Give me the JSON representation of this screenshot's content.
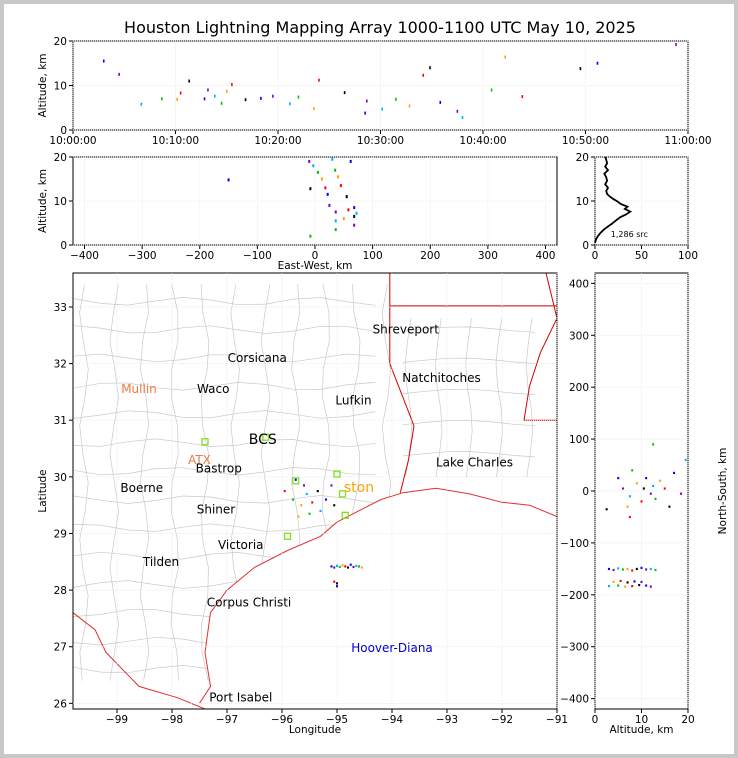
{
  "title": "Houston Lightning Mapping Array 1000-1100 UTC May 10, 2025",
  "colors": {
    "background": "#c8c8c8",
    "county_lines": "#c9c9c9",
    "state_lines": "#d40000",
    "coast": "#e03030"
  },
  "chart_data": [
    {
      "panel": "time-height",
      "type": "scatter",
      "ylabel": "Altitude, km",
      "xlabel": "",
      "xlim": [
        "10:00:00",
        "11:00:00"
      ],
      "ylim": [
        0,
        20
      ],
      "xticks": [
        "10:00:00",
        "10:10:00",
        "10:20:00",
        "10:30:00",
        "10:40:00",
        "10:50:00",
        "11:00:00"
      ],
      "yticks": [
        "0",
        "10",
        "20"
      ],
      "points": [
        [
          "10:03:00",
          15.5
        ],
        [
          "10:04:30",
          12.5
        ],
        [
          "10:06:40",
          5.8
        ],
        [
          "10:08:40",
          7.0
        ],
        [
          "10:10:10",
          6.9
        ],
        [
          "10:10:30",
          8.3
        ],
        [
          "10:11:20",
          11.0
        ],
        [
          "10:12:50",
          7.0
        ],
        [
          "10:13:10",
          9.0
        ],
        [
          "10:13:50",
          7.6
        ],
        [
          "10:14:30",
          6.0
        ],
        [
          "10:15:00",
          8.7
        ],
        [
          "10:15:30",
          10.2
        ],
        [
          "10:16:50",
          6.8
        ],
        [
          "10:18:20",
          7.1
        ],
        [
          "10:19:30",
          7.6
        ],
        [
          "10:21:10",
          5.9
        ],
        [
          "10:22:00",
          7.4
        ],
        [
          "10:23:30",
          4.8
        ],
        [
          "10:24:00",
          11.2
        ],
        [
          "10:26:30",
          8.4
        ],
        [
          "10:28:30",
          3.8
        ],
        [
          "10:28:40",
          6.5
        ],
        [
          "10:30:10",
          4.7
        ],
        [
          "10:31:30",
          6.9
        ],
        [
          "10:32:50",
          5.4
        ],
        [
          "10:34:10",
          12.3
        ],
        [
          "10:34:50",
          14.0
        ],
        [
          "10:35:50",
          6.2
        ],
        [
          "10:37:30",
          4.2
        ],
        [
          "10:38:00",
          2.8
        ],
        [
          "10:40:50",
          9.0
        ],
        [
          "10:42:10",
          16.4
        ],
        [
          "10:43:50",
          7.5
        ],
        [
          "10:49:30",
          13.8
        ],
        [
          "10:51:10",
          15.0
        ],
        [
          "10:58:50",
          19.2
        ]
      ]
    },
    {
      "panel": "east-west-height",
      "type": "scatter",
      "xlabel": "East-West, km",
      "ylabel": "Altitude, km",
      "xlim": [
        -420,
        420
      ],
      "ylim": [
        0,
        20
      ],
      "xticks": [
        "−400",
        "−300",
        "−200",
        "−100",
        "0",
        "100",
        "200",
        "300",
        "400"
      ],
      "yticks": [
        "0",
        "10",
        "20"
      ],
      "points": [
        [
          -150,
          14.8
        ],
        [
          -10,
          19.0
        ],
        [
          -3,
          18.0
        ],
        [
          5,
          16.5
        ],
        [
          12,
          15.0
        ],
        [
          18,
          13.0
        ],
        [
          -8,
          12.8
        ],
        [
          22,
          11.5
        ],
        [
          25,
          9.0
        ],
        [
          30,
          19.5
        ],
        [
          35,
          17.0
        ],
        [
          40,
          15.5
        ],
        [
          45,
          13.5
        ],
        [
          55,
          11.0
        ],
        [
          62,
          19.0
        ],
        [
          36,
          7.5
        ],
        [
          36,
          5.5
        ],
        [
          36,
          3.5
        ],
        [
          50,
          6.0
        ],
        [
          58,
          8.0
        ],
        [
          68,
          6.5
        ],
        [
          68,
          8.5
        ],
        [
          68,
          4.5
        ],
        [
          72,
          7.2
        ],
        [
          -8,
          2.0
        ]
      ]
    },
    {
      "panel": "altitude-histogram",
      "type": "line",
      "xlim": [
        0,
        100
      ],
      "ylim": [
        0,
        20
      ],
      "xticks": [
        "0",
        "50",
        "100"
      ],
      "yticks": [
        "0",
        "10",
        "20"
      ],
      "annotation": "1,286 src",
      "series": [
        {
          "x": [
            0,
            1,
            3,
            6,
            10,
            14,
            18,
            22,
            27,
            33,
            38,
            32,
            35,
            28,
            24,
            20,
            16,
            13,
            12,
            14,
            11,
            13,
            12,
            10,
            14,
            11,
            13,
            12,
            11
          ],
          "y": [
            0.5,
            1.2,
            2.0,
            2.8,
            3.6,
            4.2,
            4.8,
            5.5,
            6.3,
            6.9,
            7.6,
            8.2,
            8.7,
            9.3,
            9.9,
            10.4,
            11.0,
            11.6,
            12.3,
            13.0,
            13.8,
            14.6,
            15.4,
            16.2,
            17.0,
            17.8,
            18.6,
            19.4,
            20.0
          ]
        }
      ]
    },
    {
      "panel": "plan-view",
      "type": "scatter",
      "xlabel": "Longitude",
      "ylabel": "Latitude",
      "xlim": [
        -99.8,
        -91.0
      ],
      "ylim": [
        25.9,
        33.6
      ],
      "xticks": [
        "−99",
        "−98",
        "−97",
        "−96",
        "−95",
        "−94",
        "−93",
        "−92",
        "−91"
      ],
      "yticks": [
        "26",
        "27",
        "28",
        "29",
        "30",
        "31",
        "32",
        "33"
      ],
      "cities": [
        {
          "name": "Shreveport",
          "lon": -93.75,
          "lat": 32.6,
          "color": "#000000"
        },
        {
          "name": "Corsicana",
          "lon": -96.45,
          "lat": 32.1,
          "color": "#000000"
        },
        {
          "name": "Natchitoches",
          "lon": -93.1,
          "lat": 31.75,
          "color": "#000000"
        },
        {
          "name": "Mullin",
          "lon": -98.6,
          "lat": 31.55,
          "color": "#f07840"
        },
        {
          "name": "Waco",
          "lon": -97.25,
          "lat": 31.55,
          "color": "#000000"
        },
        {
          "name": "Lufkin",
          "lon": -94.7,
          "lat": 31.35,
          "color": "#000000"
        },
        {
          "name": "BCS",
          "lon": -96.35,
          "lat": 30.65,
          "color": "#000000"
        },
        {
          "name": "ATX",
          "lon": -97.5,
          "lat": 30.3,
          "color": "#f07840"
        },
        {
          "name": "Bastrop",
          "lon": -97.15,
          "lat": 30.15,
          "color": "#000000"
        },
        {
          "name": "Lake Charles",
          "lon": -92.5,
          "lat": 30.25,
          "color": "#000000"
        },
        {
          "name": "Boerne",
          "lon": -98.55,
          "lat": 29.8,
          "color": "#000000"
        },
        {
          "name": "ston",
          "lon": -94.6,
          "lat": 29.8,
          "color": "#ffa000"
        },
        {
          "name": "Shiner",
          "lon": -97.2,
          "lat": 29.42,
          "color": "#000000"
        },
        {
          "name": "Victoria",
          "lon": -96.75,
          "lat": 28.8,
          "color": "#000000"
        },
        {
          "name": "Tilden",
          "lon": -98.2,
          "lat": 28.5,
          "color": "#000000"
        },
        {
          "name": "Corpus Christi",
          "lon": -96.6,
          "lat": 27.78,
          "color": "#000000"
        },
        {
          "name": "Hoover-Diana",
          "lon": -94.0,
          "lat": 26.98,
          "color": "#0000d0"
        },
        {
          "name": "Port Isabel",
          "lon": -96.75,
          "lat": 26.1,
          "color": "#000000"
        }
      ],
      "stations": [
        {
          "lon": -97.4,
          "lat": 30.62
        },
        {
          "lon": -96.3,
          "lat": 30.7
        },
        {
          "lon": -95.75,
          "lat": 29.93
        },
        {
          "lon": -95.0,
          "lat": 30.05
        },
        {
          "lon": -94.85,
          "lat": 29.32
        },
        {
          "lon": -95.9,
          "lat": 28.95
        },
        {
          "lon": -94.9,
          "lat": 29.7
        }
      ],
      "points": [
        [
          -95.75,
          29.95
        ],
        [
          -95.6,
          29.85
        ],
        [
          -95.55,
          29.7
        ],
        [
          -95.8,
          29.6
        ],
        [
          -95.65,
          29.5
        ],
        [
          -95.45,
          29.55
        ],
        [
          -95.35,
          29.75
        ],
        [
          -95.2,
          29.6
        ],
        [
          -95.1,
          29.85
        ],
        [
          -95.3,
          29.4
        ],
        [
          -95.5,
          29.35
        ],
        [
          -95.7,
          29.3
        ],
        [
          -95.95,
          29.75
        ],
        [
          -95.05,
          29.5
        ],
        [
          -95.1,
          28.42
        ],
        [
          -95.05,
          28.4
        ],
        [
          -95.0,
          28.43
        ],
        [
          -94.95,
          28.41
        ],
        [
          -94.9,
          28.44
        ],
        [
          -94.85,
          28.42
        ],
        [
          -94.8,
          28.4
        ],
        [
          -94.75,
          28.45
        ],
        [
          -94.7,
          28.41
        ],
        [
          -94.65,
          28.43
        ],
        [
          -94.6,
          28.42
        ],
        [
          -94.55,
          28.4
        ],
        [
          -95.05,
          28.15
        ],
        [
          -95.0,
          28.12
        ],
        [
          -95.0,
          28.07
        ]
      ]
    },
    {
      "panel": "north-south-height",
      "type": "scatter",
      "xlabel": "Altitude, km",
      "ylabel": "North-South, km",
      "xlim": [
        0,
        20
      ],
      "ylim": [
        -420,
        420
      ],
      "xticks": [
        "0",
        "10",
        "20"
      ],
      "yticks": [
        "−400",
        "−300",
        "−200",
        "−100",
        "0",
        "100",
        "200",
        "300",
        "400"
      ],
      "points": [
        [
          5.0,
          25
        ],
        [
          6.0,
          5
        ],
        [
          7.5,
          -10
        ],
        [
          8.0,
          40
        ],
        [
          9.0,
          15
        ],
        [
          10.0,
          -20
        ],
        [
          10.5,
          5
        ],
        [
          11.0,
          25
        ],
        [
          12.0,
          -5
        ],
        [
          12.5,
          10
        ],
        [
          13.0,
          -15
        ],
        [
          14.0,
          20
        ],
        [
          15.0,
          5
        ],
        [
          16.0,
          -30
        ],
        [
          17.0,
          35
        ],
        [
          18.5,
          -5
        ],
        [
          19.5,
          60
        ],
        [
          12.5,
          90
        ],
        [
          7.0,
          -30
        ],
        [
          7.5,
          -50
        ],
        [
          2.5,
          -35
        ],
        [
          3.0,
          -150
        ],
        [
          4.0,
          -152
        ],
        [
          5.0,
          -149
        ],
        [
          6.0,
          -151
        ],
        [
          7.0,
          -150
        ],
        [
          8.0,
          -153
        ],
        [
          9.0,
          -150
        ],
        [
          10.0,
          -148
        ],
        [
          11.0,
          -151
        ],
        [
          12.0,
          -150
        ],
        [
          13.0,
          -152
        ],
        [
          4.0,
          -175
        ],
        [
          5.5,
          -173
        ],
        [
          7.0,
          -176
        ],
        [
          8.5,
          -174
        ],
        [
          10.0,
          -175
        ],
        [
          3.0,
          -183
        ],
        [
          5.0,
          -182
        ],
        [
          6.5,
          -184
        ],
        [
          8.0,
          -183
        ],
        [
          9.5,
          -181
        ],
        [
          11.0,
          -182
        ],
        [
          12.0,
          -184
        ]
      ]
    }
  ]
}
